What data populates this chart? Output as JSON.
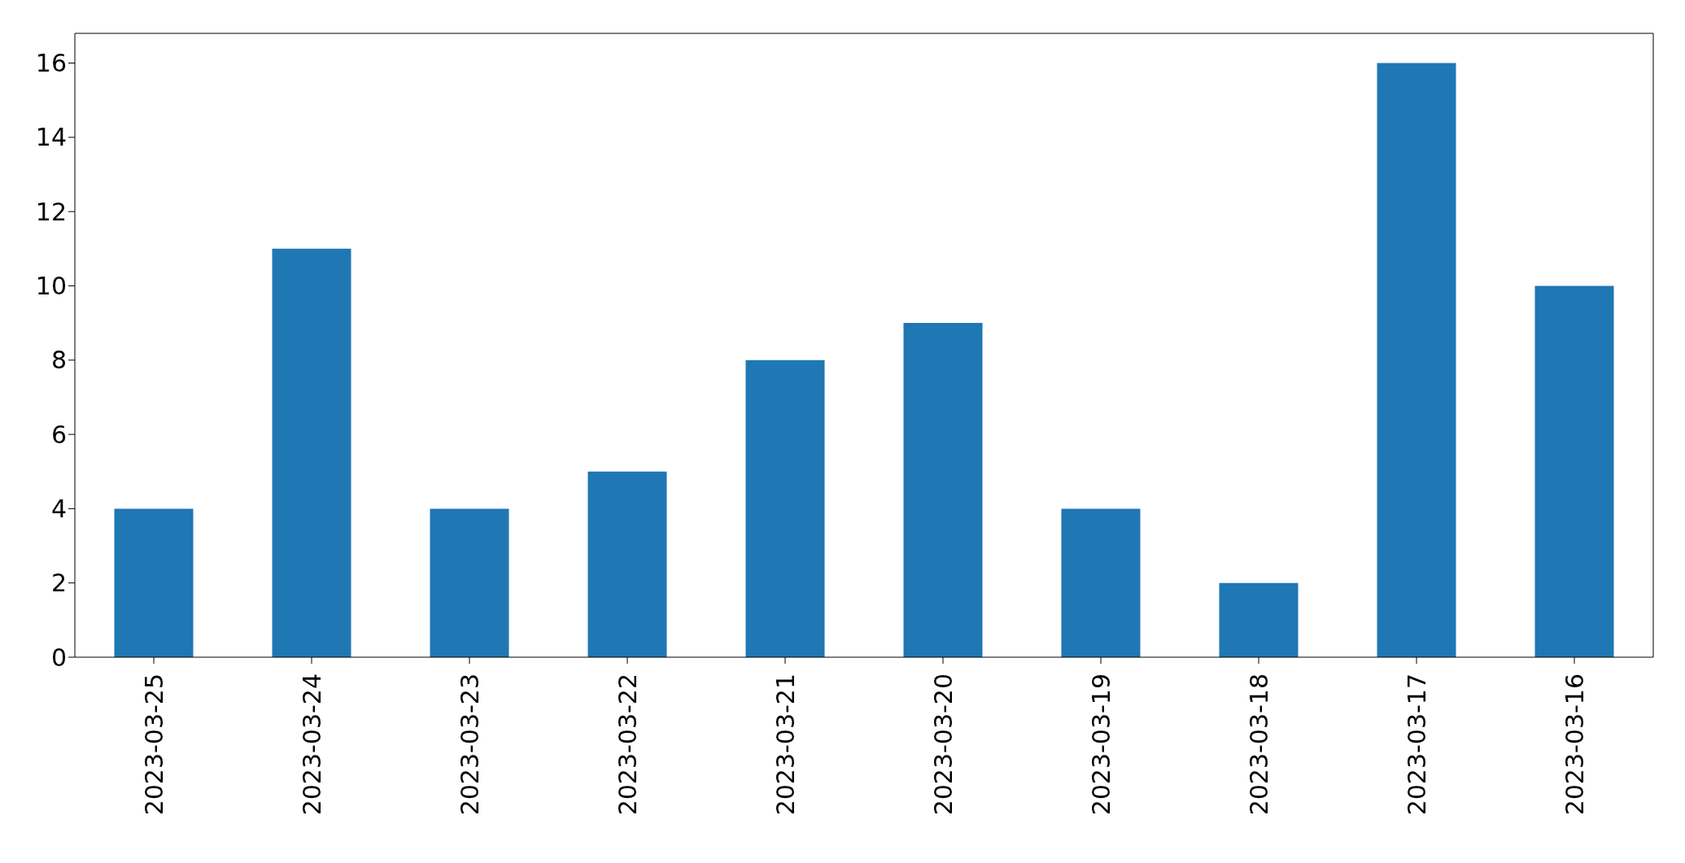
{
  "chart_data": {
    "type": "bar",
    "categories": [
      "2023-03-25",
      "2023-03-24",
      "2023-03-23",
      "2023-03-22",
      "2023-03-21",
      "2023-03-20",
      "2023-03-19",
      "2023-03-18",
      "2023-03-17",
      "2023-03-16"
    ],
    "values": [
      4,
      11,
      4,
      5,
      8,
      9,
      4,
      2,
      16,
      10
    ],
    "color": "#1f77b4",
    "ylim": [
      0,
      16.8
    ],
    "yticks": [
      0,
      2,
      4,
      6,
      8,
      10,
      12,
      14,
      16
    ],
    "grid": false
  }
}
